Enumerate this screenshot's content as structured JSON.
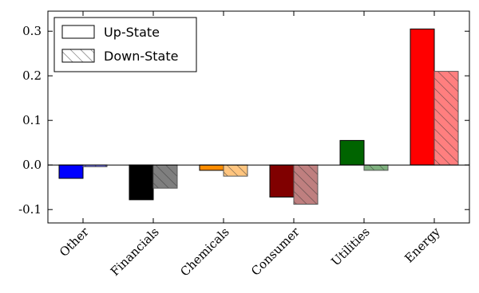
{
  "chart_data": {
    "type": "bar",
    "title": "",
    "xlabel": "",
    "ylabel": "",
    "categories": [
      "Other",
      "Financials",
      "Chemicals",
      "Consumer",
      "Utilities",
      "Energy"
    ],
    "category_colors": [
      "#0000ff",
      "#000000",
      "#ff8c00",
      "#800000",
      "#006400",
      "#ff0000"
    ],
    "series": [
      {
        "name": "Up-State",
        "pattern": "solid",
        "values": [
          -0.03,
          -0.078,
          -0.012,
          -0.072,
          0.055,
          0.305
        ]
      },
      {
        "name": "Down-State",
        "pattern": "hatched",
        "values": [
          -0.004,
          -0.052,
          -0.025,
          -0.088,
          -0.012,
          0.21
        ]
      }
    ],
    "ylim": [
      -0.13,
      0.345
    ],
    "yticks": [
      -0.1,
      0.0,
      0.1,
      0.2,
      0.3
    ],
    "ytick_labels": [
      "-0.1",
      "0.0",
      "0.1",
      "0.2",
      "0.3"
    ],
    "zero_line": true,
    "grid": false,
    "legend_position": "top-left"
  }
}
